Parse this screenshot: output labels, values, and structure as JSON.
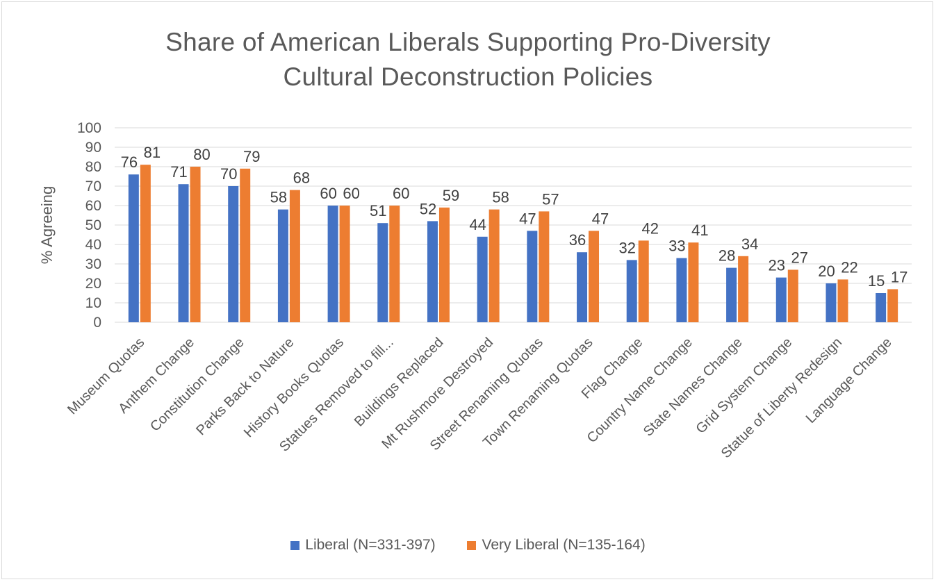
{
  "colors": {
    "liberal": "#4472C4",
    "very_liberal": "#ED7D31",
    "grid": "#d9d9d9",
    "text": "#595959"
  },
  "chart_data": {
    "type": "bar",
    "title": "Share of American Liberals Supporting Pro-Diversity Cultural Deconstruction Policies",
    "title_lines": [
      "Share of American Liberals Supporting Pro-Diversity",
      "Cultural Deconstruction Policies"
    ],
    "ylabel": "% Agreeing",
    "xlabel": "",
    "ylim": [
      0,
      100
    ],
    "yticks": [
      0,
      10,
      20,
      30,
      40,
      50,
      60,
      70,
      80,
      90,
      100
    ],
    "grid": true,
    "legend_position": "bottom",
    "categories": [
      "Museum Quotas",
      "Anthem Change",
      "Constitution Change",
      "Parks Back to Nature",
      "History Books Quotas",
      "Statues Removed to fill...",
      "Buildings Replaced",
      "Mt Rushmore Destroyed",
      "Street Renaming Quotas",
      "Town Renaming Quotas",
      "Flag Change",
      "Country Name Change",
      "State Names Change",
      "Grid System Change",
      "Statue of Liberty Redesign",
      "Language Change"
    ],
    "series": [
      {
        "name": "Liberal (N=331-397)",
        "values": [
          76,
          71,
          70,
          58,
          60,
          51,
          52,
          44,
          47,
          36,
          32,
          33,
          28,
          23,
          20,
          15
        ]
      },
      {
        "name": "Very Liberal (N=135-164)",
        "values": [
          81,
          80,
          79,
          68,
          60,
          60,
          59,
          58,
          57,
          47,
          42,
          41,
          34,
          27,
          22,
          17
        ]
      }
    ]
  }
}
